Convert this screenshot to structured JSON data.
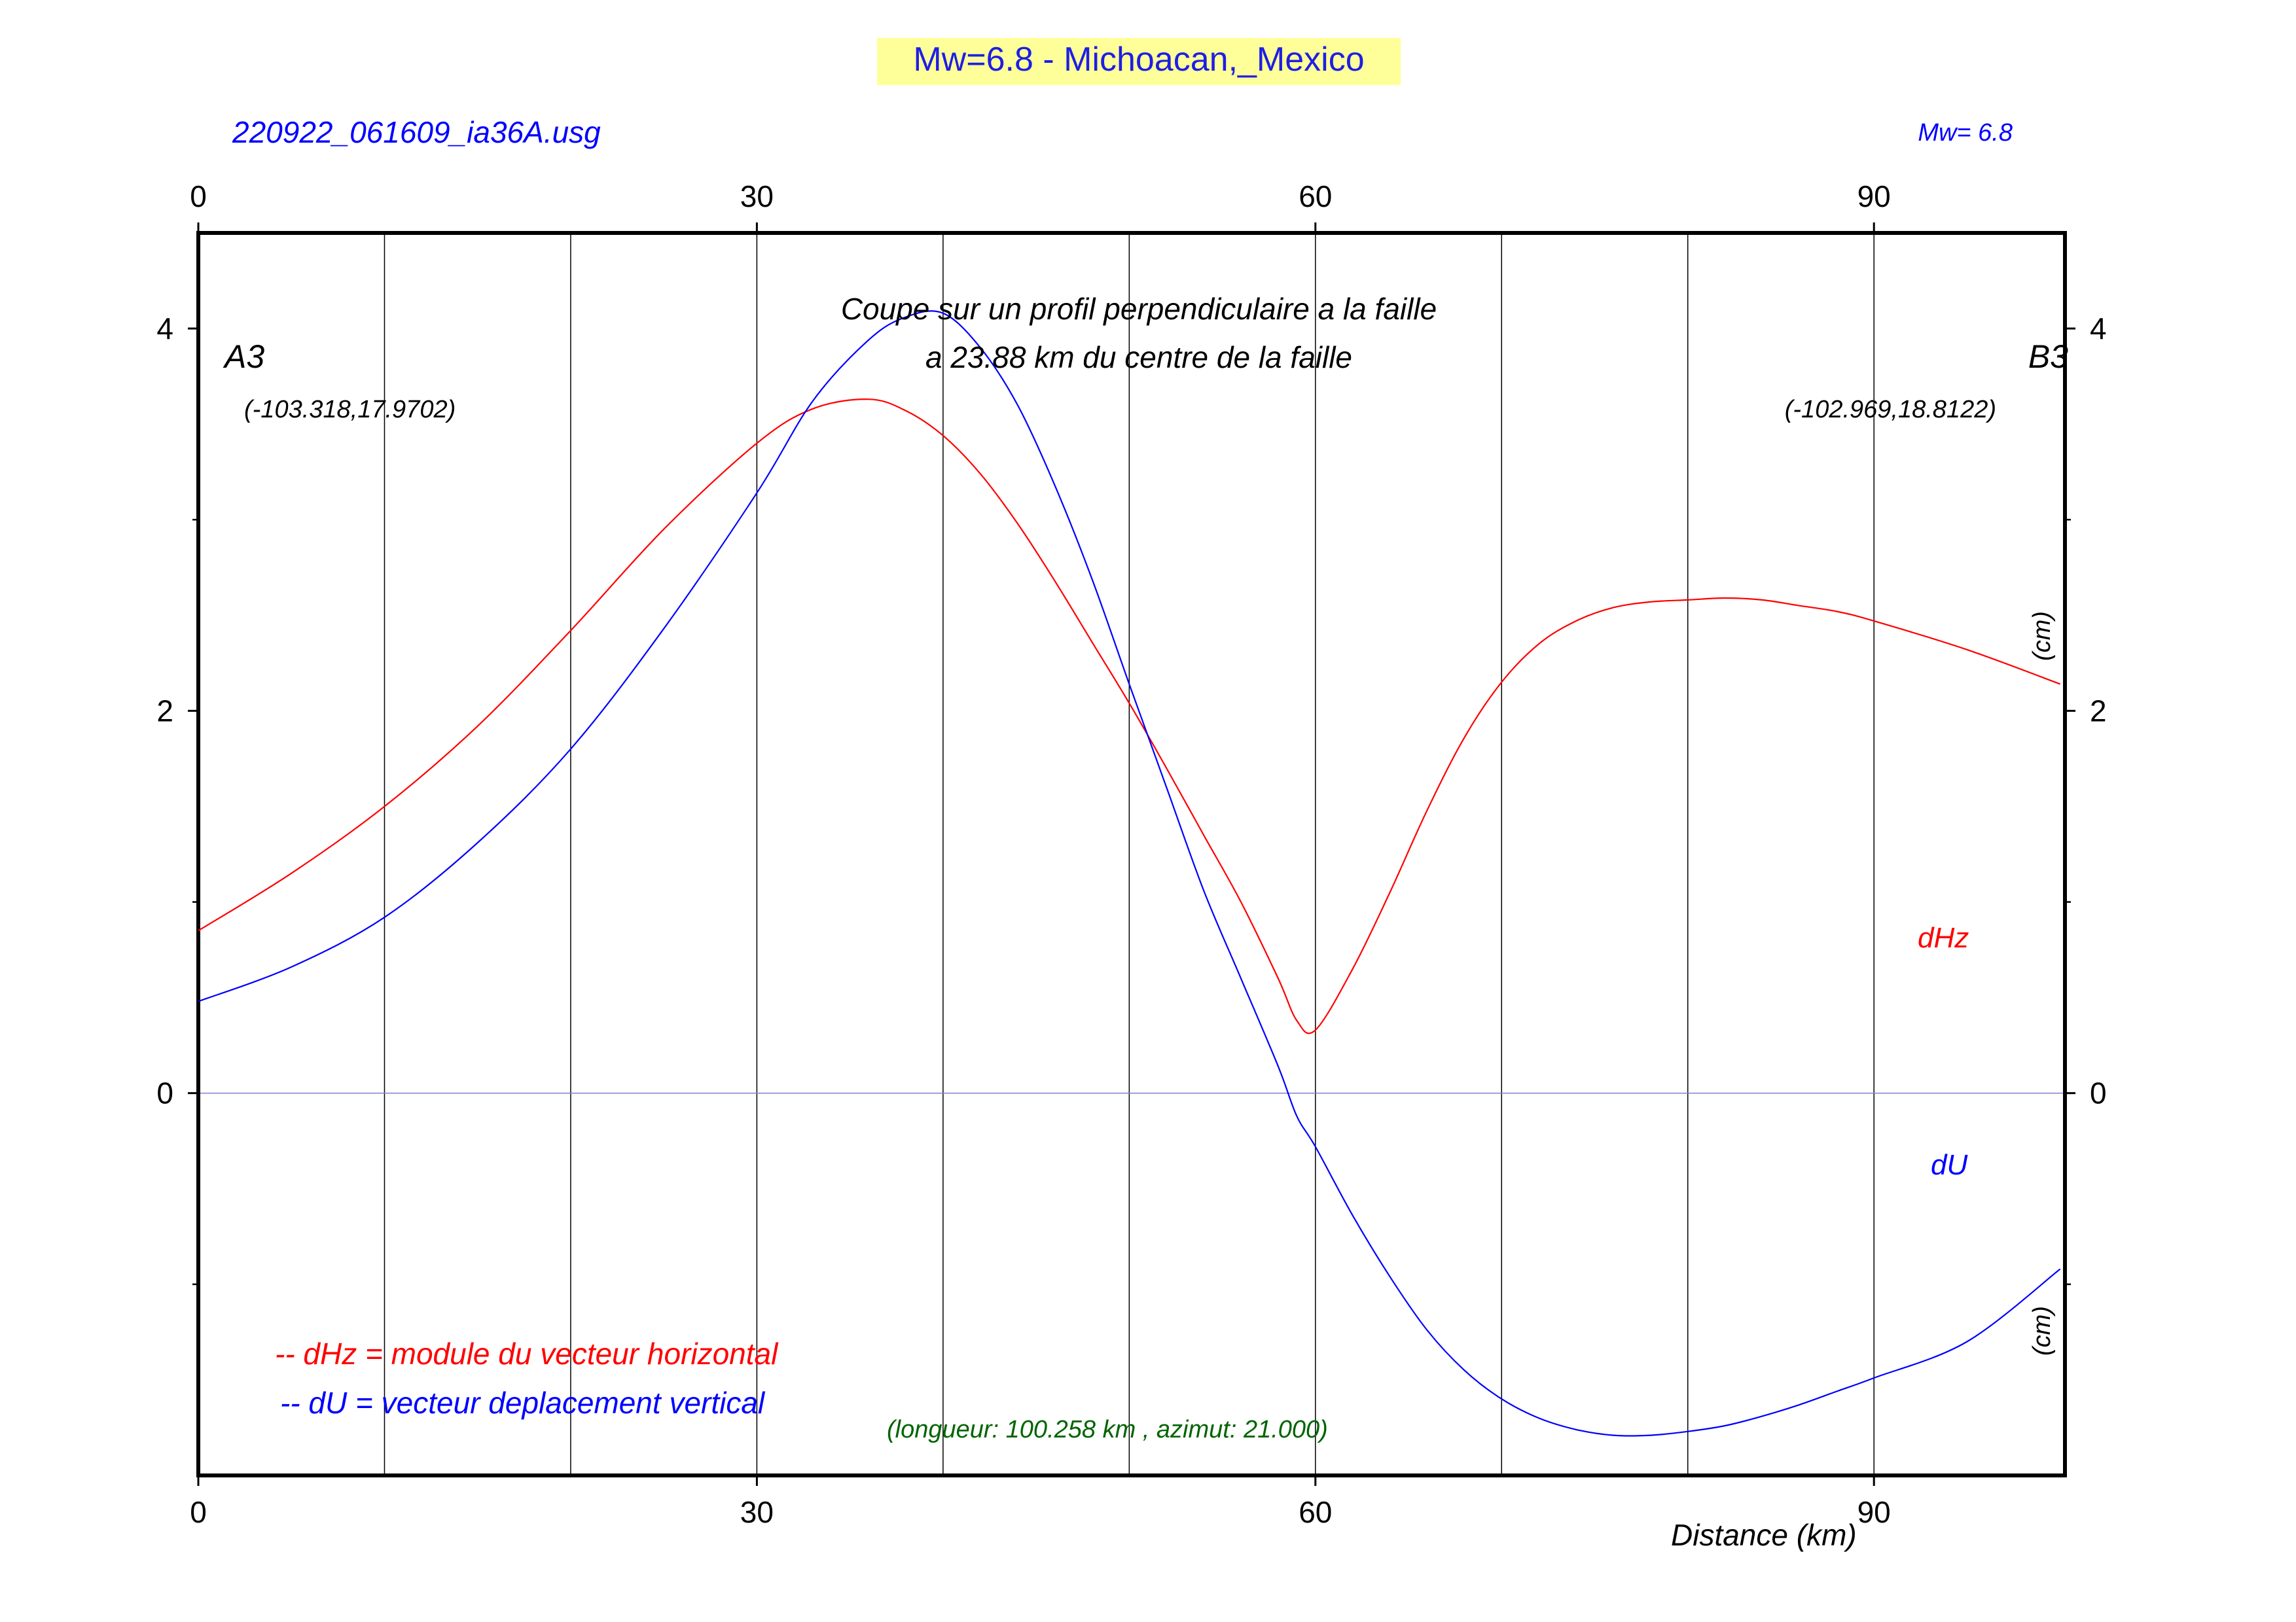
{
  "colors": {
    "title_background": "#ffff99",
    "title_text": "#1e1ee6",
    "dhz": "#ff0000",
    "du": "#0000ff",
    "green_note": "#006400",
    "frame": "#000000",
    "zero_line": "#8080d0"
  },
  "header": {
    "title": "Mw=6.8 - Michoacan,_Mexico",
    "filename": "220922_061609_ia36A.usg",
    "magnitude": "Mw= 6.8"
  },
  "annotations": {
    "section_title_line1": "Coupe sur un profil perpendiculaire a la faille",
    "section_title_line2": "a 23.88 km du centre de la faille",
    "point_a_label": "A3",
    "point_a_coords": "(-103.318,17.9702)",
    "point_b_label": "B3",
    "point_b_coords": "(-102.969,18.8122)",
    "unit_upper": "(cm)",
    "unit_lower": "(cm)",
    "series_label_dhz": "dHz",
    "series_label_du": "dU",
    "legend_dhz": "-- dHz = module du vecteur horizontal",
    "legend_du": "--  dU =  vecteur deplacement vertical",
    "profile_info": "(longueur: 100.258 km , azimut: 21.000)",
    "x_axis_title": "Distance (km)"
  },
  "chart_data": {
    "type": "line",
    "xlabel": "Distance (km)",
    "ylabel": "",
    "xlim": [
      0,
      100.258
    ],
    "ylim": [
      -2,
      4.5
    ],
    "x_ticks": [
      0,
      30,
      60,
      90
    ],
    "x_tick_labels": [
      "0",
      "30",
      "60",
      "90"
    ],
    "x_gridlines": [
      10,
      20,
      30,
      40,
      50,
      60,
      70,
      80,
      90
    ],
    "y_ticks": [
      0,
      2,
      4
    ],
    "y_tick_labels": [
      "0",
      "2",
      "4"
    ],
    "y_minor_ticks": [
      -1,
      1,
      3
    ],
    "grid": true,
    "x": [
      0,
      5,
      10,
      15,
      20,
      25,
      30,
      33,
      36,
      38,
      40,
      42,
      44,
      46,
      48,
      50,
      52,
      54,
      56,
      58,
      59,
      60,
      62,
      64,
      66,
      68,
      70,
      72,
      74,
      76,
      78,
      80,
      82,
      84,
      86,
      88,
      90,
      95,
      100
    ],
    "series": [
      {
        "name": "dHz",
        "values": [
          0.85,
          1.15,
          1.5,
          1.92,
          2.42,
          2.95,
          3.4,
          3.58,
          3.63,
          3.57,
          3.44,
          3.24,
          2.98,
          2.68,
          2.36,
          2.04,
          1.7,
          1.35,
          1.0,
          0.6,
          0.38,
          0.33,
          0.65,
          1.05,
          1.48,
          1.86,
          2.15,
          2.35,
          2.47,
          2.54,
          2.57,
          2.58,
          2.59,
          2.58,
          2.55,
          2.52,
          2.47,
          2.32,
          2.14
        ]
      },
      {
        "name": "dU",
        "values": [
          0.48,
          0.66,
          0.92,
          1.31,
          1.8,
          2.43,
          3.14,
          3.62,
          3.94,
          4.06,
          4.08,
          3.9,
          3.6,
          3.18,
          2.69,
          2.14,
          1.6,
          1.06,
          0.6,
          0.14,
          -0.12,
          -0.28,
          -0.64,
          -0.96,
          -1.24,
          -1.45,
          -1.6,
          -1.7,
          -1.76,
          -1.79,
          -1.79,
          -1.77,
          -1.74,
          -1.69,
          -1.63,
          -1.56,
          -1.49,
          -1.3,
          -0.92
        ]
      }
    ]
  }
}
